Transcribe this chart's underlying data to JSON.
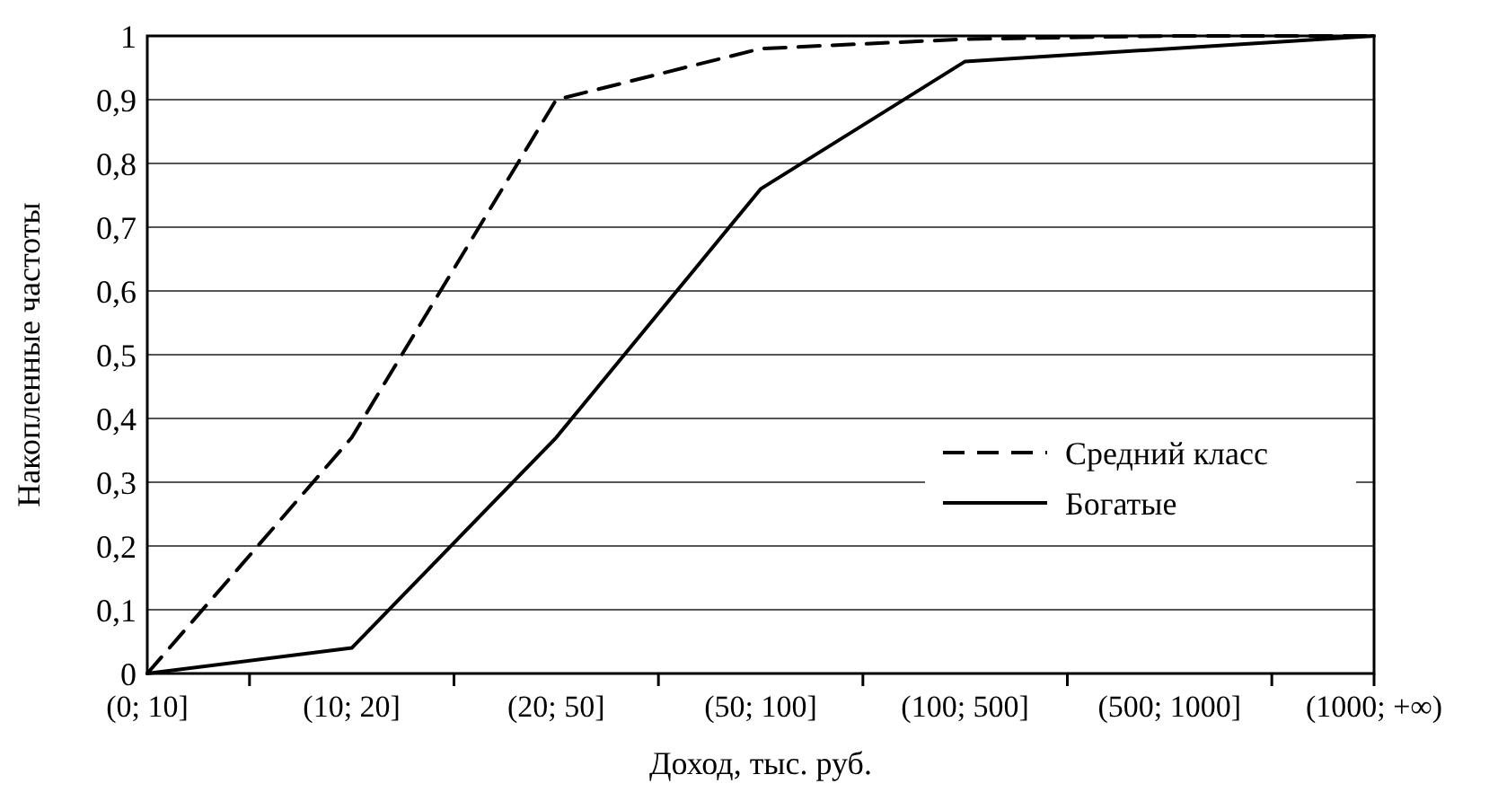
{
  "chart_data": {
    "type": "line",
    "xlabel": "Доход, тыс. руб.",
    "ylabel": "Накопленные частоты",
    "categories": [
      "(0; 10]",
      "(10; 20]",
      "(20; 50]",
      "(50; 100]",
      "(100; 500]",
      "(500; 1000]",
      "(1000; +∞)"
    ],
    "series": [
      {
        "name": "Средний класс",
        "color": "#000000",
        "line_style": "dashed",
        "values": [
          0,
          0.37,
          0.9,
          0.98,
          0.995,
          1,
          1
        ]
      },
      {
        "name": "Богатые",
        "color": "#000000",
        "line_style": "solid",
        "values": [
          0,
          0.04,
          0.37,
          0.76,
          0.96,
          0.98,
          1
        ]
      }
    ],
    "ylim": [
      0,
      1
    ],
    "yticks": [
      0,
      {
        "value": 0.1,
        "label": "0,1"
      },
      {
        "value": 0.2,
        "label": "0,2"
      },
      {
        "value": 0.3,
        "label": "0,3"
      },
      {
        "value": 0.4,
        "label": "0,4"
      },
      {
        "value": 0.5,
        "label": "0,5"
      },
      {
        "value": 0.6,
        "label": "0,6"
      },
      {
        "value": 0.7,
        "label": "0,7"
      },
      {
        "value": 0.8,
        "label": "0,8"
      },
      {
        "value": 0.9,
        "label": "0,9"
      },
      1
    ],
    "grid": "y",
    "legend": "right",
    "marker": "none"
  }
}
